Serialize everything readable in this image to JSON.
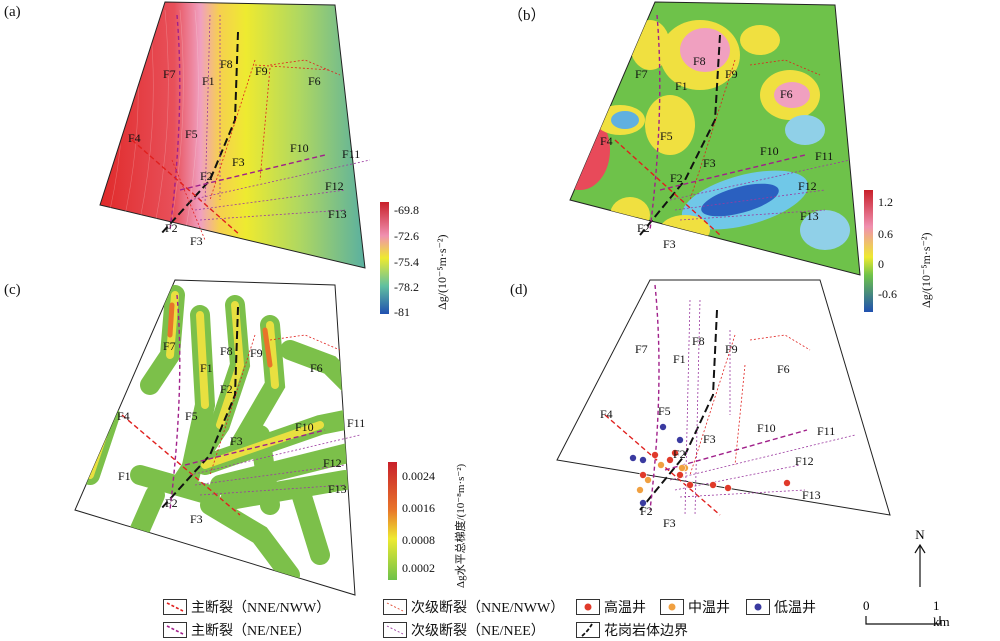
{
  "panels": {
    "a": {
      "label": "(a)"
    },
    "b": {
      "label": "（b）"
    },
    "c": {
      "label": "(c)"
    },
    "d": {
      "label": "(d)"
    }
  },
  "colorbar_a": {
    "ticks": [
      "-69.8",
      "-72.6",
      "-75.4",
      "-78.2",
      "-81"
    ],
    "unit_label": "Δg/(10⁻⁵m·s⁻²)"
  },
  "colorbar_b": {
    "ticks": [
      "1.2",
      "0.6",
      "0",
      "-0.6"
    ],
    "unit_label": "Δg/(10⁻⁵m·s⁻²)"
  },
  "colorbar_c": {
    "ticks": [
      "0.0024",
      "0.0016",
      "0.0008",
      "0.0002"
    ],
    "unit_label": "Δg水平总梯度/(10⁻⁸m·s⁻²)"
  },
  "faults": {
    "F1": "F1",
    "F2": "F2",
    "F3": "F3",
    "F4": "F4",
    "F5": "F5",
    "F6": "F6",
    "F7": "F7",
    "F8": "F8",
    "F9": "F9",
    "F10": "F10",
    "F11": "F11",
    "F12": "F12",
    "F13": "F13"
  },
  "legend": {
    "main_fault_nne": "主断裂（NNE/NWW）",
    "secondary_fault_nne": "次级断裂（NNE/NWW）",
    "high_temp_well": "高温井",
    "mid_temp_well": "中温井",
    "low_temp_well": "低温井",
    "main_fault_ne": "主断裂（NE/NEE）",
    "secondary_fault_ne": "次级断裂（NE/NEE）",
    "granite_boundary": "花岗岩体边界"
  },
  "north": "N",
  "scale": {
    "zero": "0",
    "km": "1 km"
  },
  "colors": {
    "main_fault_nne": "#e0201e",
    "secondary_fault": "#e04a30",
    "main_fault_ne": "#a0208a",
    "secondary_fault_ne": "#9b3aa0",
    "high_temp_well": "#e03a2a",
    "mid_temp_well": "#f0a040",
    "low_temp_well": "#3a3aa0"
  }
}
